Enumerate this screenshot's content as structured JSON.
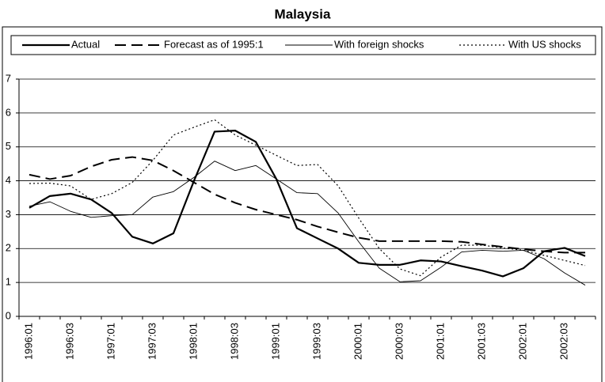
{
  "chart_data": {
    "type": "line",
    "title": "Malaysia",
    "categories": [
      "1996:01",
      null,
      "1996:03",
      null,
      "1997:01",
      null,
      "1997:03",
      null,
      "1998:01",
      null,
      "1998:03",
      null,
      "1999:01",
      null,
      "1999:03",
      null,
      "2000:01",
      null,
      "2000:03",
      null,
      "2001:01",
      null,
      "2001:03",
      null,
      "2002:01",
      null,
      "2002:03",
      null
    ],
    "series": [
      {
        "name": "Actual",
        "color": "#000000",
        "style": "thick",
        "values": [
          3.2,
          3.55,
          3.62,
          3.45,
          3.05,
          2.35,
          2.15,
          2.45,
          4.0,
          5.45,
          5.48,
          5.15,
          4.05,
          2.6,
          2.3,
          2.0,
          1.58,
          1.52,
          1.52,
          1.65,
          1.62,
          1.48,
          1.35,
          1.18,
          1.42,
          1.92,
          2.02,
          1.78
        ]
      },
      {
        "name": "Forecast as of 1995:1",
        "color": "#000000",
        "style": "dashed",
        "values": [
          4.18,
          4.05,
          4.15,
          4.42,
          4.62,
          4.7,
          4.6,
          4.3,
          3.95,
          3.6,
          3.35,
          3.15,
          3.0,
          2.85,
          2.65,
          2.48,
          2.32,
          2.22,
          2.22,
          2.22,
          2.22,
          2.2,
          2.12,
          2.05,
          1.98,
          1.92,
          1.88,
          1.88
        ]
      },
      {
        "name": "With foreign shocks",
        "color": "#000000",
        "style": "thin",
        "values": [
          3.25,
          3.38,
          3.1,
          2.92,
          2.97,
          3.0,
          3.52,
          3.68,
          4.1,
          4.58,
          4.3,
          4.45,
          4.05,
          3.65,
          3.62,
          3.05,
          2.2,
          1.42,
          1.02,
          1.05,
          1.45,
          1.9,
          1.95,
          1.92,
          1.95,
          1.7,
          1.28,
          0.92
        ]
      },
      {
        "name": "With US shocks",
        "color": "#000000",
        "style": "dotted",
        "values": [
          3.92,
          3.93,
          3.85,
          3.45,
          3.62,
          3.95,
          4.6,
          5.35,
          5.58,
          5.8,
          5.35,
          5.05,
          4.75,
          4.45,
          4.48,
          3.85,
          2.9,
          2.0,
          1.4,
          1.2,
          1.75,
          2.1,
          2.1,
          2.02,
          1.95,
          1.8,
          1.65,
          1.5
        ]
      }
    ],
    "ylim": [
      0,
      7
    ],
    "yticks": [
      0,
      1,
      2,
      3,
      4,
      5,
      6,
      7
    ],
    "grid": true,
    "legend": "top"
  }
}
